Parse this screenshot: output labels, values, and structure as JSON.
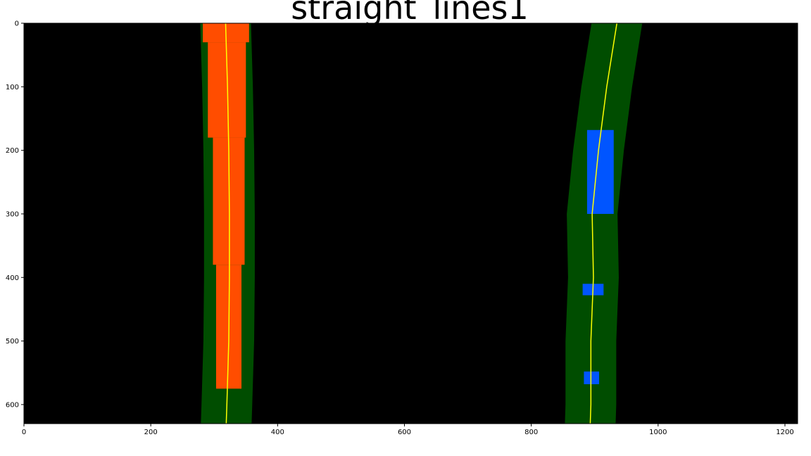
{
  "chart_data": {
    "type": "image",
    "title": "straight_lines1",
    "xlim": [
      0,
      1220
    ],
    "ylim": [
      630,
      0
    ],
    "x_ticks": [
      0,
      200,
      400,
      600,
      800,
      1000,
      1200
    ],
    "y_ticks": [
      0,
      100,
      200,
      300,
      400,
      500,
      600
    ],
    "background_color": "#000000",
    "search_window_color": "#004d00",
    "left_pixels_color": "#ff4d00",
    "right_pixels_color": "#0055ff",
    "fit_line_color": "#ffff00",
    "search_margin": 40,
    "left_fit": {
      "points": [
        [
          0,
          318
        ],
        [
          100,
          321
        ],
        [
          200,
          323
        ],
        [
          300,
          324
        ],
        [
          400,
          324
        ],
        [
          500,
          323
        ],
        [
          600,
          320
        ],
        [
          630,
          319
        ]
      ]
    },
    "right_fit": {
      "points": [
        [
          0,
          935
        ],
        [
          100,
          919
        ],
        [
          200,
          906
        ],
        [
          300,
          896
        ],
        [
          400,
          898
        ],
        [
          500,
          894
        ],
        [
          600,
          894
        ],
        [
          630,
          893
        ]
      ]
    },
    "left_pixels": [
      {
        "y": [
          0,
          30
        ],
        "x": [
          282,
          355
        ]
      },
      {
        "y": [
          30,
          180
        ],
        "x": [
          290,
          350
        ]
      },
      {
        "y": [
          180,
          380
        ],
        "x": [
          298,
          348
        ]
      },
      {
        "y": [
          380,
          575
        ],
        "x": [
          303,
          343
        ]
      }
    ],
    "right_pixels": [
      {
        "y": [
          168,
          300
        ],
        "x": [
          888,
          930
        ]
      },
      {
        "y": [
          410,
          428
        ],
        "x": [
          881,
          914
        ]
      },
      {
        "y": [
          548,
          568
        ],
        "x": [
          883,
          907
        ]
      }
    ]
  }
}
